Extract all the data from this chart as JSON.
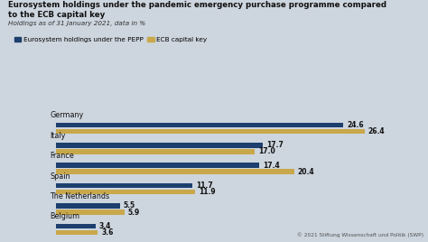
{
  "title_line1": "Eurosystem holdings under the pandemic emergency purchase programme compared",
  "title_line2": "to the ECB capital key",
  "subtitle": "Holdings as of 31 January 2021, data in %",
  "countries": [
    "Germany",
    "Italy",
    "France",
    "Spain",
    "The Netherlands",
    "Belgium"
  ],
  "pepp": [
    24.6,
    17.7,
    17.4,
    11.7,
    5.5,
    3.4
  ],
  "capital_key": [
    26.4,
    17.0,
    20.4,
    11.9,
    5.9,
    3.6
  ],
  "pepp_color": "#1c3f6e",
  "capital_key_color": "#c8a84b",
  "background_color": "#cdd5de",
  "xlim": [
    0,
    30
  ],
  "legend_label_pepp": "Eurosystem holdings under the PEPP",
  "legend_label_ck": "ECB capital key",
  "footnote": "© 2021 Stiftung Wissenschaft und Politik (SWP)"
}
